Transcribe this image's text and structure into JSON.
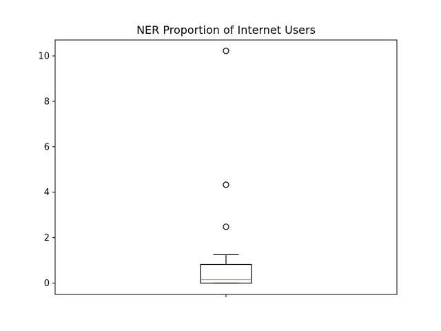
{
  "chart_data": {
    "type": "box",
    "title": "NER Proportion of Internet Users",
    "xlabel": "",
    "ylabel": "",
    "ylim": [
      -0.5,
      10.7
    ],
    "yticks": [
      0,
      2,
      4,
      6,
      8,
      10
    ],
    "x_tick_labels": [
      ""
    ],
    "boxes": [
      {
        "whisker_low": 0.0,
        "q1": 0.0,
        "median": 0.15,
        "q3": 0.82,
        "whisker_high": 1.25,
        "outliers": [
          2.48,
          4.33,
          10.22
        ]
      }
    ],
    "colors": {
      "box": "#000000",
      "median": "#ff7f0e",
      "outlier": "#000000"
    },
    "grid": false,
    "legend": "none"
  }
}
